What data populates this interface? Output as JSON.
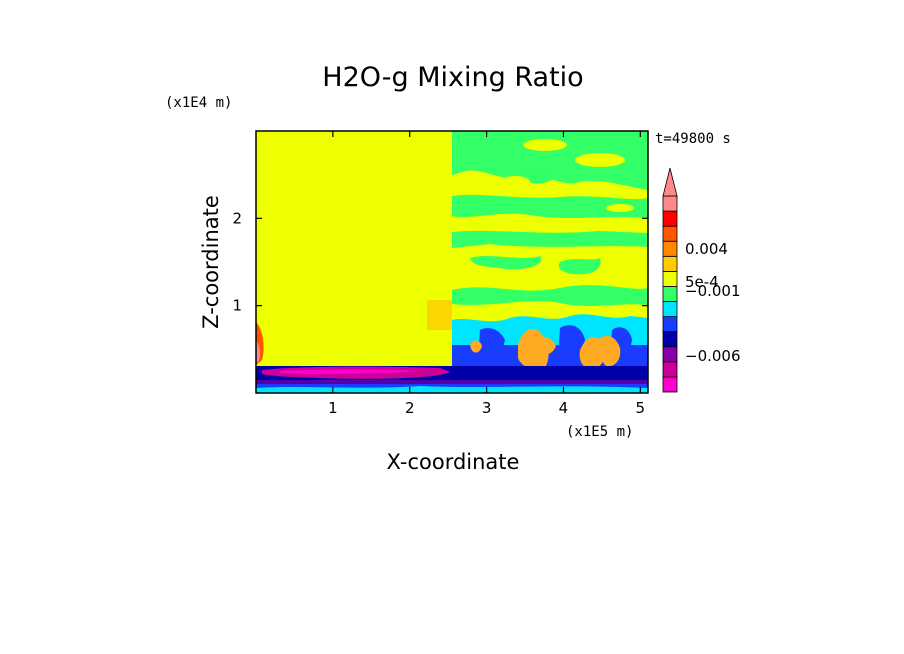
{
  "chart_data": {
    "type": "heatmap",
    "title": "H2O-g Mixing Ratio",
    "xlabel": "X-coordinate",
    "ylabel": "Z-coordinate",
    "x_unit": "(x1E5 m)",
    "y_unit": "(x1E4 m)",
    "time_label": "t=49800 s",
    "xlim": [
      0,
      5.1
    ],
    "ylim": [
      0,
      3
    ],
    "x_ticks": [
      1,
      2,
      3,
      4,
      5
    ],
    "y_ticks": [
      1,
      2
    ],
    "colorbar": {
      "colors": [
        "#ff00cc",
        "#cc0099",
        "#8800aa",
        "#0000aa",
        "#1a3cff",
        "#00e5ff",
        "#33ff66",
        "#eeff00",
        "#ffcc00",
        "#ff8800",
        "#ff5500",
        "#ff0000",
        "#ff8888"
      ],
      "extend_top_color": "#ff8888",
      "labels": [
        {
          "text": "0.004",
          "level": 9.5
        },
        {
          "text": "5e-4",
          "level": 7.3
        },
        {
          "text": "−0.001",
          "level": 6.7
        },
        {
          "text": "−0.006",
          "level": 2.4
        }
      ]
    },
    "regions": [
      {
        "name": "upper-domain",
        "value_class": "yellow",
        "color": "#eeff00"
      },
      {
        "name": "surface-layer",
        "value_class": "magenta-blue",
        "color": "#cc0099"
      },
      {
        "name": "convective-cells",
        "value_class": "orange",
        "color": "#ffaa22"
      },
      {
        "name": "moist-bands",
        "value_class": "green",
        "color": "#33ff66"
      },
      {
        "name": "mid-layer",
        "value_class": "cyan",
        "color": "#00e5ff"
      }
    ]
  }
}
